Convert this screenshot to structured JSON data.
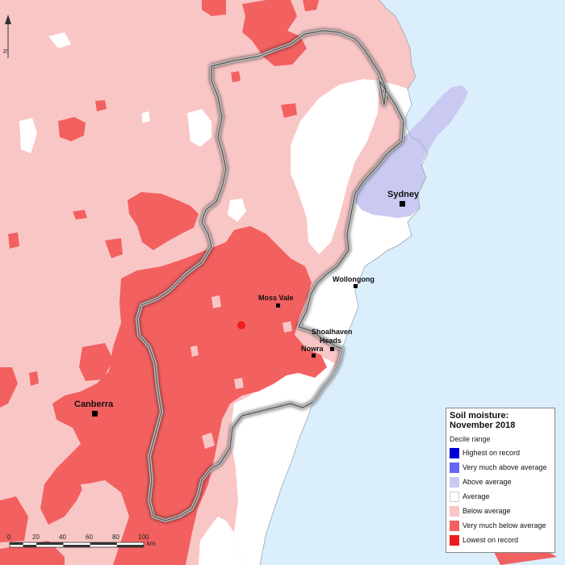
{
  "map": {
    "towns": {
      "sydney": "Sydney",
      "wollongong": "Wollongong",
      "moss_vale": "Moss Vale",
      "shoalhaven_line1": "Shoalhaven",
      "shoalhaven_line2": "Heads",
      "nowra": "Nowra",
      "canberra": "Canberra"
    },
    "scale_bar": {
      "ticks": [
        "0",
        "20",
        "40",
        "60",
        "80",
        "100"
      ],
      "unit": "km"
    },
    "north_arrow_label": "N"
  },
  "legend": {
    "title_line1": "Soil moisture:",
    "title_line2": "November 2018",
    "subtitle": "Decile range",
    "items": [
      {
        "label": "Highest on record",
        "color": "#0000d8"
      },
      {
        "label": "Very much above average",
        "color": "#6666ee"
      },
      {
        "label": "Above average",
        "color": "#c9c9f2"
      },
      {
        "label": "Average",
        "color": "#ffffff"
      },
      {
        "label": "Below average",
        "color": "#f9c6c6"
      },
      {
        "label": "Very much below average",
        "color": "#f26060"
      },
      {
        "label": "Lowest on record",
        "color": "#ee1c1c"
      }
    ]
  },
  "colors": {
    "ocean": "#dbeefb",
    "below_average": "#f9c6c6",
    "very_much_below": "#f26060",
    "lowest": "#ee1c1c",
    "above_average": "#c9c9f2",
    "average": "#ffffff"
  }
}
